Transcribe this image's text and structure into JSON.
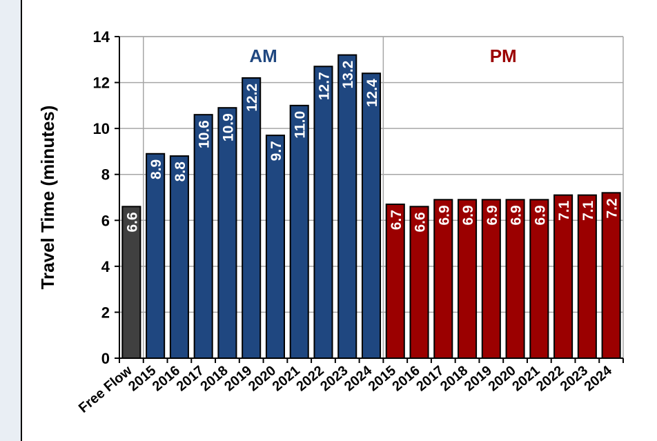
{
  "chart_data": {
    "type": "bar",
    "ylabel": "Travel Time (minutes)",
    "ylim": [
      0,
      14
    ],
    "yticks": [
      0,
      2,
      4,
      6,
      8,
      10,
      12,
      14
    ],
    "grid": true,
    "groups": [
      {
        "name": "",
        "categories": [
          "Free Flow"
        ],
        "values": [
          6.6
        ],
        "labels": [
          "6.6"
        ],
        "color": "#404040"
      },
      {
        "name": "AM",
        "categories": [
          "2015",
          "2016",
          "2017",
          "2018",
          "2019",
          "2020",
          "2021",
          "2022",
          "2023",
          "2024"
        ],
        "values": [
          8.9,
          8.8,
          10.6,
          10.9,
          12.2,
          9.7,
          11.0,
          12.7,
          13.2,
          12.4
        ],
        "labels": [
          "8.9",
          "8.8",
          "10.6",
          "10.9",
          "12.2",
          "9.7",
          "11.0",
          "12.7",
          "13.2",
          "12.4"
        ],
        "color": "#1f4780",
        "label_color": "#1f4780"
      },
      {
        "name": "PM",
        "categories": [
          "2015",
          "2016",
          "2017",
          "2018",
          "2019",
          "2020",
          "2021",
          "2022",
          "2023",
          "2024"
        ],
        "values": [
          6.7,
          6.6,
          6.9,
          6.9,
          6.9,
          6.9,
          6.9,
          7.1,
          7.1,
          7.2
        ],
        "labels": [
          "6.7",
          "6.6",
          "6.9",
          "6.9",
          "6.9",
          "6.9",
          "6.9",
          "7.1",
          "7.1",
          "7.2"
        ],
        "color": "#9b0000",
        "label_color": "#9b0000"
      }
    ]
  }
}
